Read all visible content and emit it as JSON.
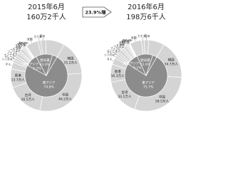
{
  "growth": "23.9%増",
  "chart_data": [
    {
      "type": "donut",
      "title": "2015年6月",
      "subtitle": "160万2千人",
      "inner_color": "#8c8c8c",
      "outer_color": "#d4d4d4",
      "inner": {
        "categories": [
          "東アジア",
          "東南アジア+インド",
          "欧米豪",
          null
        ],
        "values": [
          74.6,
          9.2,
          12.6,
          3.6
        ],
        "value_labels": [
          "74.6%",
          "9.2%",
          "12.6%",
          null
        ]
      },
      "outer": {
        "categories": [
          "韓国",
          "中国",
          "台湾",
          "香港",
          "タイ",
          "シンガポール",
          "マレーシア",
          "インドネシア",
          "フィリピン",
          "ベトナム",
          "インド",
          "英国",
          "フランス",
          "ドイツ",
          "イタリア",
          "ロシア",
          "スペイン",
          "米国",
          "カナダ",
          "豪州",
          null
        ],
        "values": [
          25.2,
          46.2,
          26.5,
          13.7,
          4.9,
          1.9,
          1.7,
          1.6,
          2.3,
          1.3,
          1.0,
          2.0,
          1.1,
          0.9,
          0.6,
          0.4,
          0.5,
          8.9,
          2.1,
          3.7,
          13.7
        ],
        "value_labels": [
          "25.2万人",
          "46.2万人",
          "26.5万人",
          "13.7万人",
          null,
          null,
          null,
          null,
          null,
          null,
          null,
          null,
          null,
          null,
          null,
          null,
          null,
          null,
          null,
          null,
          null
        ]
      }
    },
    {
      "type": "donut",
      "title": "2016年6月",
      "subtitle": "198万6千人",
      "inner_color": "#8c8c8c",
      "outer_color": "#d4d4d4",
      "inner": {
        "categories": [
          "東アジア",
          "東南アジア+インド",
          "欧米豪",
          null
        ],
        "values": [
          75.7,
          9.1,
          12.0,
          3.2
        ],
        "value_labels": [
          "75.7%",
          "9.1%",
          "12.0%",
          null
        ]
      },
      "outer": {
        "categories": [
          "韓国",
          "中国",
          "台湾",
          "香港",
          "タイ",
          "シンガポール",
          "マレーシア",
          "インドネシア",
          "フィリピン",
          "ベトナム",
          "インド",
          "英国",
          "フランス",
          "ドイツ",
          "イタリア",
          "ロシア",
          "スペイン",
          "米国",
          "カナダ",
          "豪州",
          null
        ],
        "values": [
          34.7,
          58.5,
          33.1,
          16.3,
          6.0,
          2.3,
          2.1,
          2.0,
          2.9,
          1.6,
          1.2,
          2.4,
          1.3,
          1.1,
          0.7,
          0.5,
          0.6,
          10.5,
          2.5,
          4.2,
          14.1
        ],
        "value_labels": [
          "34.7万人",
          "58.5万人",
          "33.1万人",
          "16.3万人",
          null,
          null,
          null,
          null,
          null,
          null,
          null,
          null,
          null,
          null,
          null,
          null,
          null,
          null,
          null,
          null,
          null
        ]
      }
    }
  ]
}
